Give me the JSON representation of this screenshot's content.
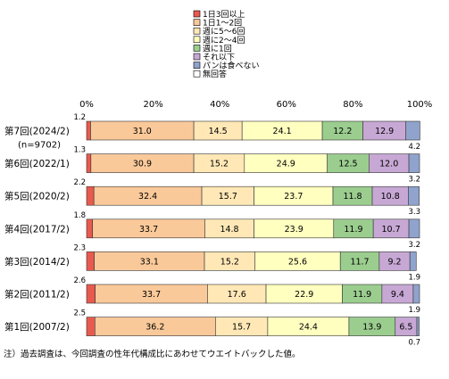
{
  "chart_data": {
    "type": "bar",
    "stacked": "100%",
    "orientation": "horizontal",
    "x_ticks": [
      "0%",
      "20%",
      "40%",
      "60%",
      "80%",
      "100%"
    ],
    "xlim": [
      0,
      100
    ],
    "legend_position": "top-right",
    "series": [
      {
        "name": "1日3回以上",
        "color": "#e85a4f",
        "values": [
          1.2,
          1.3,
          2.2,
          1.8,
          2.3,
          2.6,
          2.5
        ]
      },
      {
        "name": "1日1～2回",
        "color": "#fac99a",
        "values": [
          31.0,
          30.9,
          32.4,
          33.7,
          33.1,
          33.7,
          36.2
        ]
      },
      {
        "name": "週に5～6回",
        "color": "#ffe8b6",
        "values": [
          14.5,
          15.2,
          15.7,
          14.8,
          15.2,
          17.6,
          15.7
        ]
      },
      {
        "name": "週に2～4回",
        "color": "#ffffc0",
        "values": [
          24.1,
          24.9,
          23.7,
          23.9,
          25.6,
          22.9,
          24.4
        ]
      },
      {
        "name": "週に1回",
        "color": "#9bcd8f",
        "values": [
          12.2,
          12.5,
          11.8,
          11.9,
          11.7,
          11.9,
          13.9
        ]
      },
      {
        "name": "それ以下",
        "color": "#c7a8d4",
        "values": [
          12.9,
          12.0,
          10.8,
          10.7,
          9.2,
          9.4,
          6.5
        ]
      },
      {
        "name": "パンは食べない",
        "color": "#8fa3cc",
        "values": [
          4.2,
          3.2,
          3.3,
          3.2,
          1.9,
          1.9,
          0.7
        ]
      },
      {
        "name": "無回答",
        "color": "#ffffff",
        "values": [
          0,
          0,
          0,
          0,
          0,
          0,
          0
        ]
      }
    ],
    "categories": [
      {
        "label": "第7回(2024/2)",
        "sublabel": "(n=9702)"
      },
      {
        "label": "第6回(2022/1)",
        "sublabel": ""
      },
      {
        "label": "第5回(2020/2)",
        "sublabel": ""
      },
      {
        "label": "第4回(2017/2)",
        "sublabel": ""
      },
      {
        "label": "第3回(2014/2)",
        "sublabel": ""
      },
      {
        "label": "第2回(2011/2)",
        "sublabel": ""
      },
      {
        "label": "第1回(2007/2)",
        "sublabel": ""
      }
    ],
    "left_labels": [
      "1.2",
      "1.3",
      "2.2",
      "1.8",
      "2.3",
      "2.6",
      "2.5"
    ],
    "inside_labels": [
      [
        "31.0",
        "14.5",
        "24.1",
        "12.2",
        "12.9"
      ],
      [
        "30.9",
        "15.2",
        "24.9",
        "12.5",
        "12.0"
      ],
      [
        "32.4",
        "15.7",
        "23.7",
        "11.8",
        "10.8"
      ],
      [
        "33.7",
        "14.8",
        "23.9",
        "11.9",
        "10.7"
      ],
      [
        "33.1",
        "15.2",
        "25.6",
        "11.7",
        "9.2"
      ],
      [
        "33.7",
        "17.6",
        "22.9",
        "11.9",
        "9.4"
      ],
      [
        "36.2",
        "15.7",
        "24.4",
        "13.9",
        "6.5"
      ]
    ],
    "right_labels": [
      "4.2",
      "3.2",
      "3.3",
      "3.2",
      "1.9",
      "1.9",
      "0.7"
    ]
  },
  "note": "注）過去調査は、今回調査の性年代構成比にあわせてウエイトバックした値。"
}
